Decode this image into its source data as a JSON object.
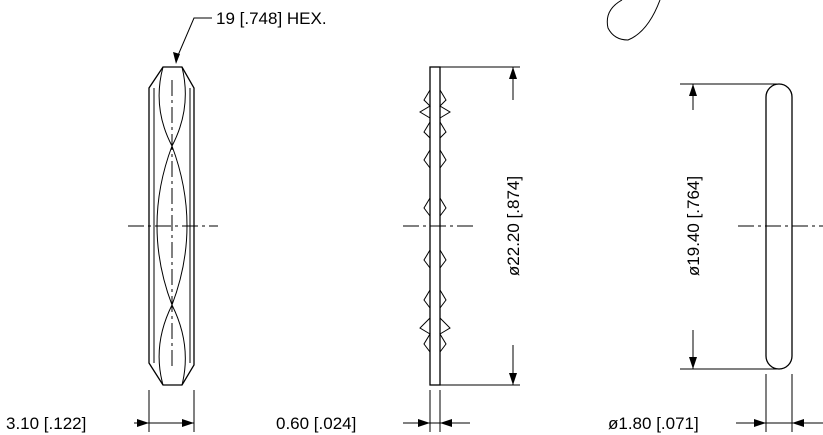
{
  "hex_nut": {
    "hex_callout": "19 [.748] HEX.",
    "thickness_dim": "3.10 [.122]"
  },
  "lock_washer": {
    "diameter_dim": "ø22.20 [.874]",
    "thickness_dim": "0.60 [.024]"
  },
  "o_ring": {
    "diameter_dim": "ø19.40 [.764]",
    "thickness_dim": "ø1.80 [.071]"
  }
}
